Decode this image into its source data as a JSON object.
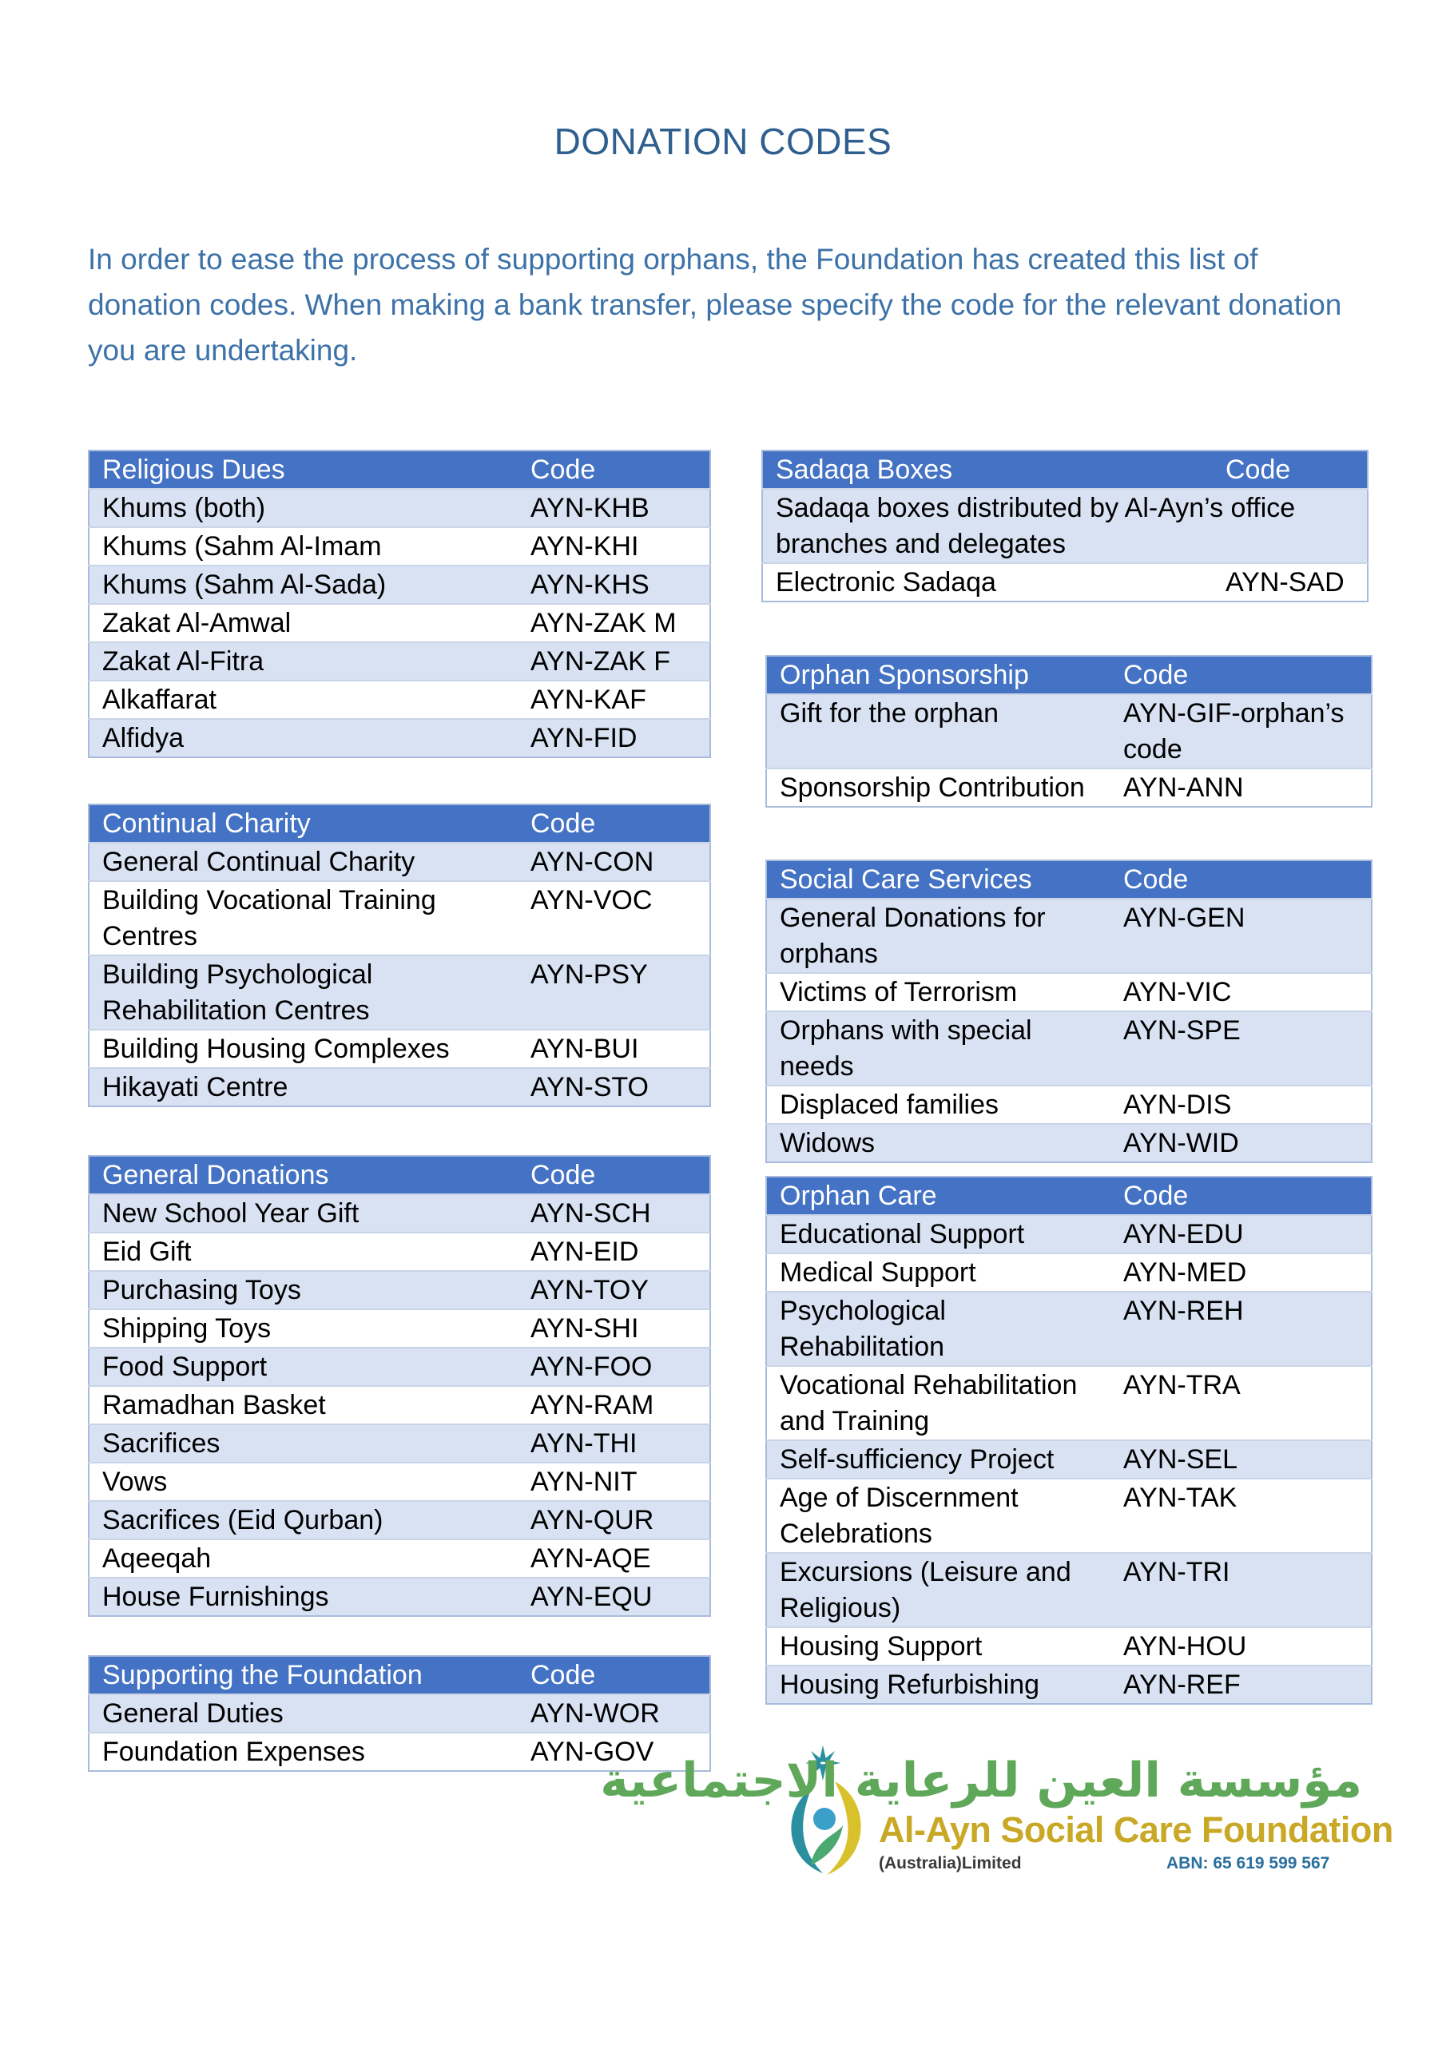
{
  "title": "DONATION CODES",
  "intro": "In order to ease the process of supporting orphans, the Foundation has created this list of donation codes. When making a bank transfer, please specify the code for the relevant donation you are undertaking.",
  "tables": {
    "religious_dues": {
      "header": [
        "Religious Dues",
        "Code"
      ],
      "rows": [
        [
          "Khums (both)",
          "AYN-KHB"
        ],
        [
          "Khums (Sahm Al-Imam",
          "AYN-KHI"
        ],
        [
          "Khums (Sahm Al-Sada)",
          "AYN-KHS"
        ],
        [
          "Zakat Al-Amwal",
          "AYN-ZAK M"
        ],
        [
          "Zakat Al-Fitra",
          "AYN-ZAK F"
        ],
        [
          "Alkaffarat",
          "AYN-KAF"
        ],
        [
          "Alfidya",
          "AYN-FID"
        ]
      ]
    },
    "continual_charity": {
      "header": [
        "Continual Charity",
        "Code"
      ],
      "rows": [
        [
          "General Continual Charity",
          "AYN-CON"
        ],
        [
          "Building Vocational Training Centres",
          "AYN-VOC"
        ],
        [
          "Building Psychological Rehabilitation Centres",
          "AYN-PSY"
        ],
        [
          "Building Housing Complexes",
          "AYN-BUI"
        ],
        [
          "Hikayati Centre",
          "AYN-STO"
        ]
      ]
    },
    "general_donations": {
      "header": [
        "General Donations",
        "Code"
      ],
      "rows": [
        [
          "New School Year Gift",
          "AYN-SCH"
        ],
        [
          "Eid Gift",
          "AYN-EID"
        ],
        [
          "Purchasing Toys",
          "AYN-TOY"
        ],
        [
          "Shipping Toys",
          "AYN-SHI"
        ],
        [
          "Food Support",
          "AYN-FOO"
        ],
        [
          "Ramadhan Basket",
          "AYN-RAM"
        ],
        [
          "Sacrifices",
          "AYN-THI"
        ],
        [
          "Vows",
          "AYN-NIT"
        ],
        [
          "Sacrifices (Eid Qurban)",
          "AYN-QUR"
        ],
        [
          "Aqeeqah",
          "AYN-AQE"
        ],
        [
          "House Furnishings",
          "AYN-EQU"
        ]
      ]
    },
    "supporting_foundation": {
      "header": [
        "Supporting the Foundation",
        "Code"
      ],
      "rows": [
        [
          "General Duties",
          "AYN-WOR"
        ],
        [
          "Foundation Expenses",
          "AYN-GOV"
        ]
      ]
    },
    "sadaqa_boxes": {
      "header": [
        "Sadaqa Boxes",
        "Code"
      ],
      "note": "Sadaqa boxes distributed by Al-Ayn’s office branches and delegates",
      "rows": [
        [
          "Electronic Sadaqa",
          "AYN-SAD"
        ]
      ]
    },
    "orphan_sponsorship": {
      "header": [
        "Orphan Sponsorship",
        "Code"
      ],
      "rows": [
        [
          "Gift for the orphan",
          "AYN-GIF-orphan’s code"
        ],
        [
          "Sponsorship Contribution",
          "AYN-ANN"
        ]
      ]
    },
    "social_care": {
      "header": [
        "Social Care Services",
        "Code"
      ],
      "rows": [
        [
          "General Donations for orphans",
          "AYN-GEN"
        ],
        [
          "Victims of Terrorism",
          "AYN-VIC"
        ],
        [
          "Orphans with special needs",
          "AYN-SPE"
        ],
        [
          "Displaced families",
          "AYN-DIS"
        ],
        [
          "Widows",
          "AYN-WID"
        ]
      ]
    },
    "orphan_care": {
      "header": [
        "Orphan Care",
        "Code"
      ],
      "rows": [
        [
          "Educational Support",
          "AYN-EDU"
        ],
        [
          "Medical Support",
          "AYN-MED"
        ],
        [
          "Psychological Rehabilitation",
          "AYN-REH"
        ],
        [
          "Vocational Rehabilitation and Training",
          "AYN-TRA"
        ],
        [
          "Self-sufficiency Project",
          "AYN-SEL"
        ],
        [
          "Age of Discernment Celebrations",
          "AYN-TAK"
        ],
        [
          "Excursions (Leisure and Religious)",
          "AYN-TRI"
        ],
        [
          "Housing Support",
          "AYN-HOU"
        ],
        [
          "Housing Refurbishing",
          "AYN-REF"
        ]
      ]
    }
  },
  "logo": {
    "arabic": "مؤسسة العين للرعاية الاجتماعية",
    "name": "Al-Ayn Social Care Foundation",
    "sub": "(Australia)Limited",
    "abn": "ABN: 65 619 599 567",
    "colors": {
      "green": "#5fa85a",
      "gold": "#c9a825",
      "blue": "#2a6f9e"
    }
  },
  "colors": {
    "header_bg": "#4472c4",
    "band_bg": "#d9e2f3",
    "title": "#2f5f8f",
    "intro": "#3d72a8"
  }
}
